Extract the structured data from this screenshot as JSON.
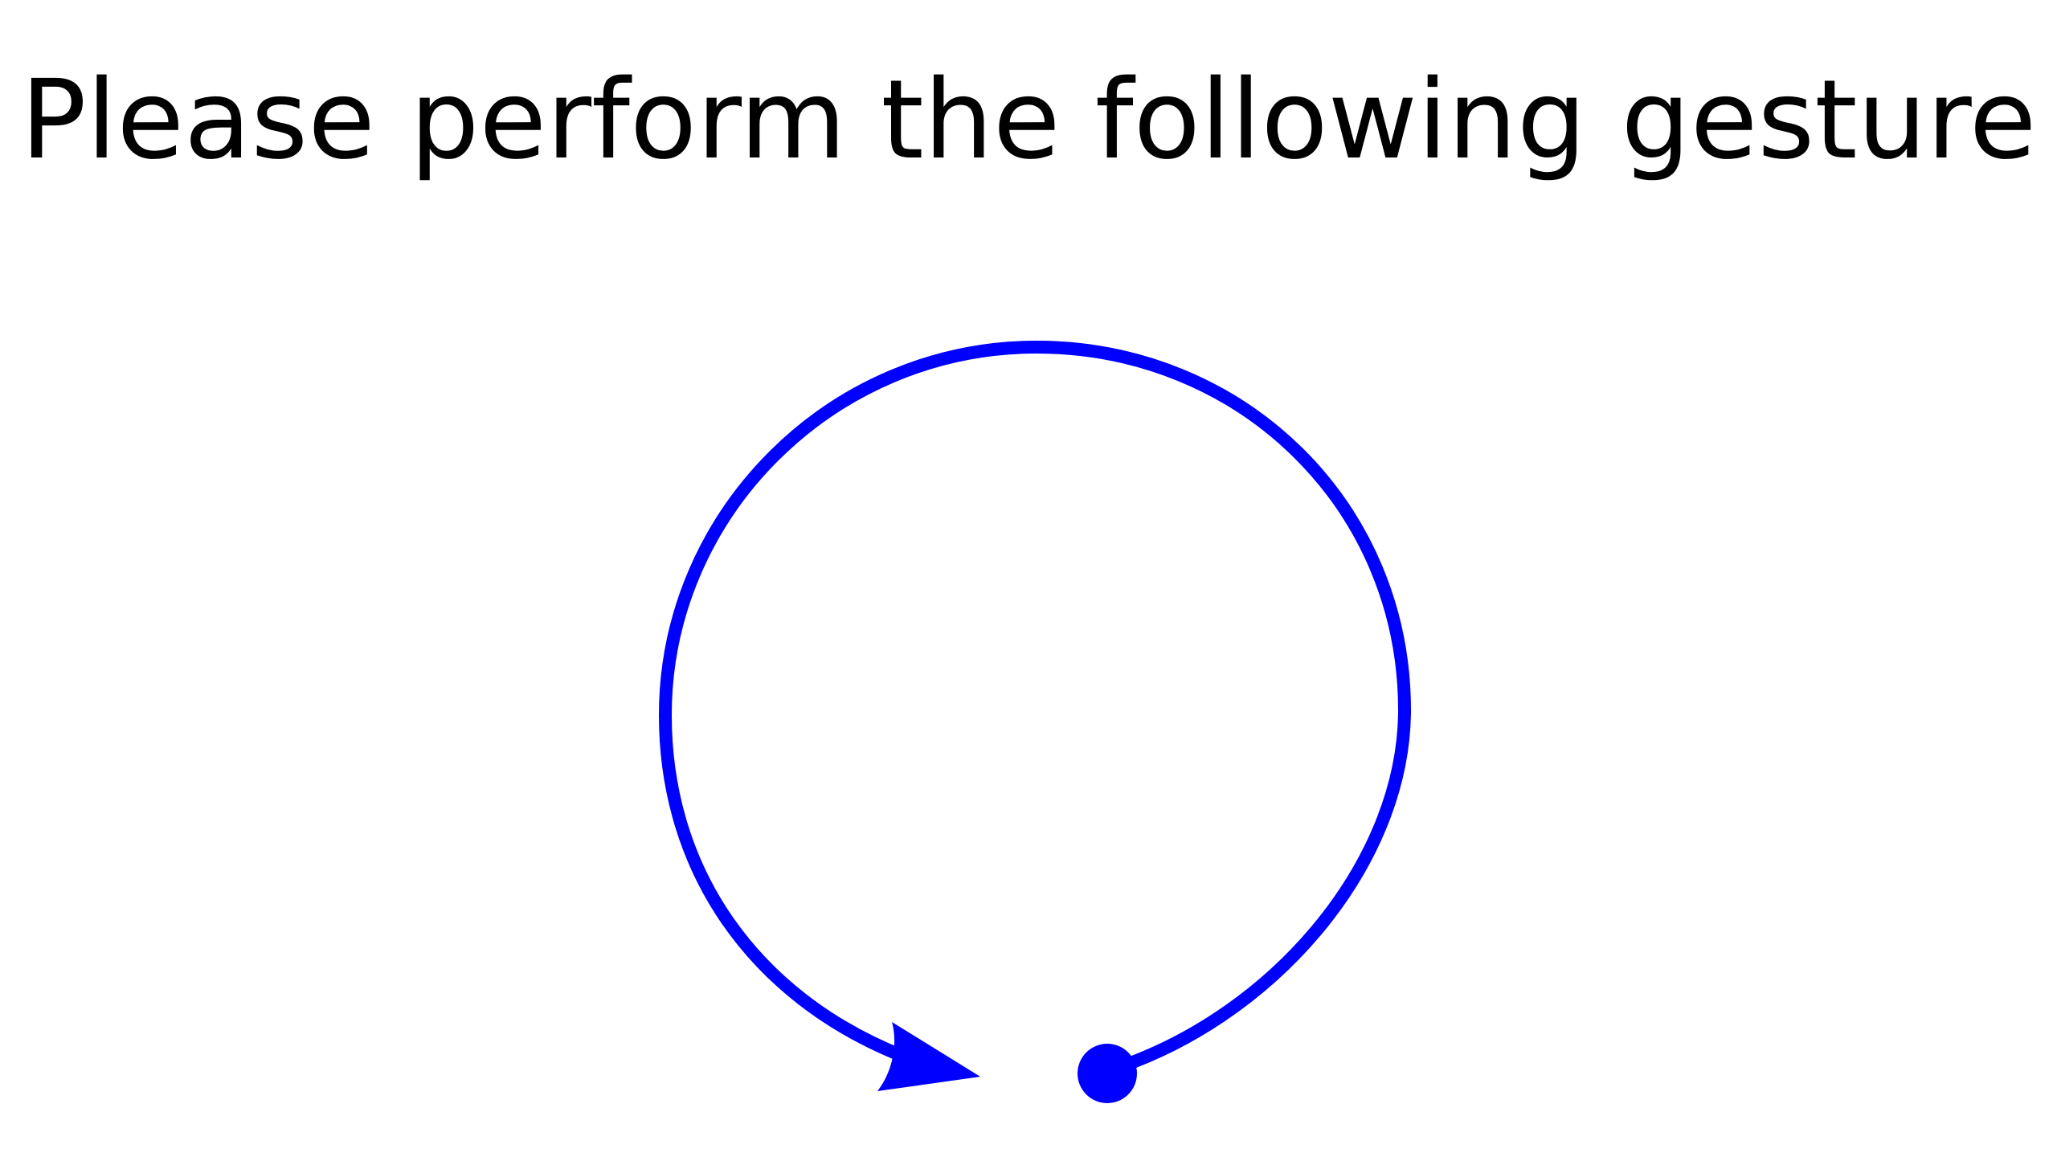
{
  "prompt": {
    "text": "Please perform the following gesture"
  },
  "gesture": {
    "icon": "circular-gesture-arrow-icon",
    "direction": "counterclockwise",
    "stroke_color": "#0000ff"
  }
}
